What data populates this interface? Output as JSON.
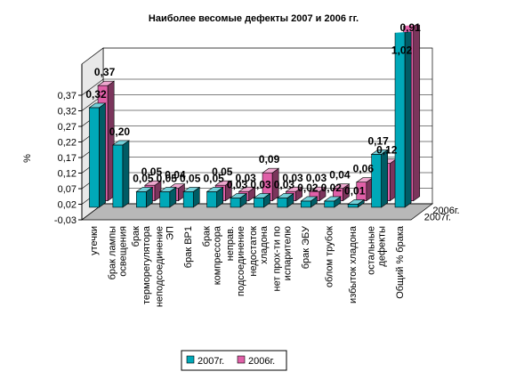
{
  "chart_data": {
    "type": "bar3d",
    "title": "Наиболее весомые дефекты 2007 и 2006 гг.",
    "ylabel": "%",
    "categories": [
      "утечки",
      "брак лампы\nосвещения",
      "брак\nтерморегулятора",
      "неподсоединение\nЭП",
      "брак ВР1",
      "брак\nкомпрессора",
      "неправ.\nподсоединение",
      "недостаток\nхладона",
      "нет прох-ти по\nиспарителю",
      "брак ЭБУ",
      "облом трубок",
      "избыток хладона",
      "остальные\nдефекты",
      "Общий % брака"
    ],
    "series": [
      {
        "name": "2007г.",
        "color": "#00a8b8",
        "values": [
          0.32,
          0.2,
          0.05,
          0.05,
          0.05,
          0.05,
          0.03,
          0.03,
          0.03,
          0.02,
          0.02,
          0.01,
          0.17,
          1.02
        ],
        "value_labels": [
          "0,32",
          "0,20",
          "0,05",
          "0,05",
          "0,05",
          "0,05",
          "0,03",
          "0,03",
          "0,03",
          "0,02",
          "0,02",
          "0,01",
          "0,17",
          "1,02"
        ]
      },
      {
        "name": "2006г.",
        "color": "#e060a8",
        "values": [
          0.37,
          null,
          0.05,
          0.04,
          null,
          0.05,
          0.03,
          0.09,
          0.03,
          0.03,
          0.04,
          0.06,
          0.12,
          0.91
        ],
        "value_labels": [
          "0,37",
          null,
          "0,05",
          "0,04",
          null,
          "0,05",
          "0,03",
          "0,09",
          "0,03",
          "0,03",
          "0,04",
          "0,06",
          "0,12",
          "0,91"
        ]
      }
    ],
    "ylim": [
      -0.03,
      0.47
    ],
    "yticks": [
      {
        "value": -0.03,
        "label": "-0,03"
      },
      {
        "value": 0.02,
        "label": "0,02"
      },
      {
        "value": 0.07,
        "label": "0,07"
      },
      {
        "value": 0.12,
        "label": "0,12"
      },
      {
        "value": 0.17,
        "label": "0,17"
      },
      {
        "value": 0.22,
        "label": "0,22"
      },
      {
        "value": 0.27,
        "label": "0,27"
      },
      {
        "value": 0.32,
        "label": "0,32"
      },
      {
        "value": 0.37,
        "label": "0,37"
      }
    ],
    "grid": true,
    "legend": "bottom"
  }
}
